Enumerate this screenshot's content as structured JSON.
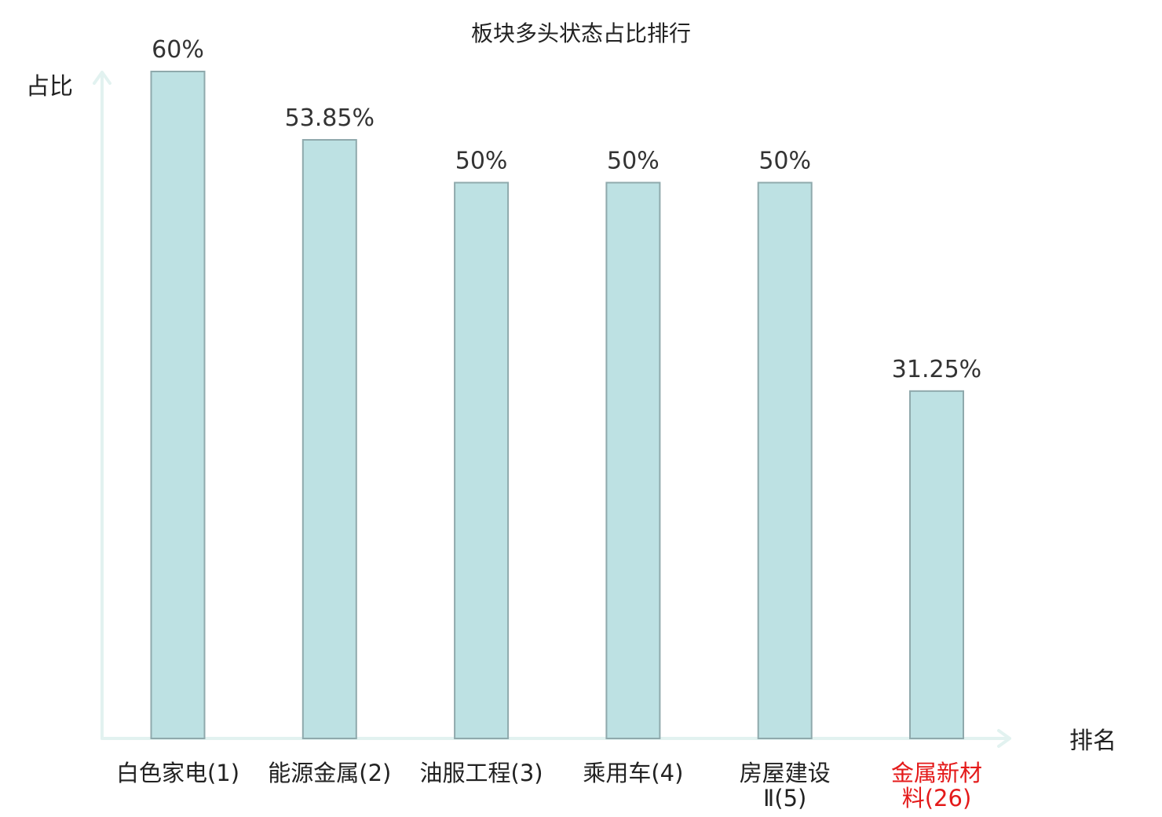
{
  "chart_data": {
    "type": "bar",
    "title": "板块多头状态占比排行",
    "ylabel": "占比",
    "xlabel": "排名",
    "ylim": [
      0,
      60
    ],
    "grid": false,
    "categories": [
      [
        "白色家电(1)"
      ],
      [
        "能源金属(2)"
      ],
      [
        "油服工程(3)"
      ],
      [
        "乘用车(4)"
      ],
      [
        "房屋建设",
        "Ⅱ(5)"
      ],
      [
        "金属新材",
        "料(26)"
      ]
    ],
    "values": [
      60,
      53.85,
      50,
      50,
      50,
      31.25
    ],
    "value_labels": [
      "60%",
      "53.85%",
      "50%",
      "50%",
      "50%",
      "31.25%"
    ],
    "highlight_index": 5,
    "colors": {
      "bar_fill": "#bde1e3",
      "bar_stroke": "#8fa9ac",
      "axis": "#e2f2f0",
      "highlight_text": "#e41a1a"
    }
  }
}
